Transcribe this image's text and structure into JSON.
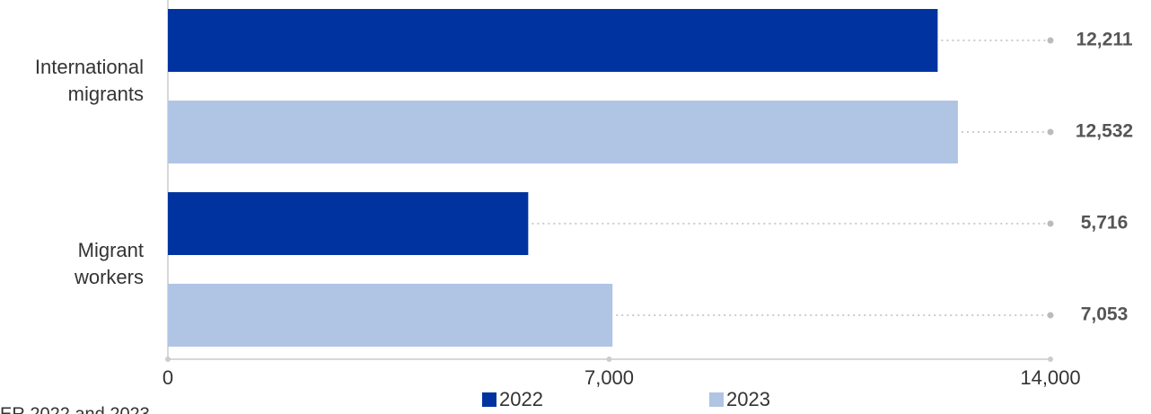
{
  "chart_data": {
    "type": "bar",
    "orientation": "horizontal",
    "categories": [
      "International migrants",
      "Migrant workers"
    ],
    "series": [
      {
        "name": "2022",
        "color": "#0033a0",
        "values": [
          12211,
          5716
        ],
        "value_labels": [
          "12,211",
          "5,716"
        ]
      },
      {
        "name": "2023",
        "color": "#b0c4e4",
        "values": [
          12532,
          7053
        ],
        "value_labels": [
          "12,532",
          "7,053"
        ]
      }
    ],
    "xlim": [
      0,
      14000
    ],
    "xticks": [
      0,
      {
        "value": 7000,
        "label": "7,000"
      },
      {
        "value": 14000,
        "label": "14,000"
      }
    ],
    "note": "ER 2022 and 2023"
  }
}
